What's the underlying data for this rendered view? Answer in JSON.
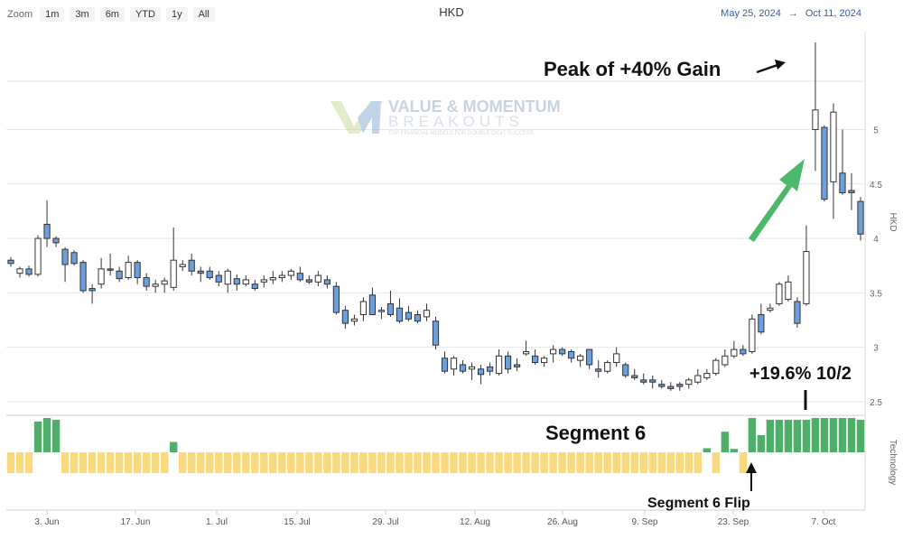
{
  "toolbar": {
    "zoom_label": "Zoom",
    "buttons": [
      "1m",
      "3m",
      "6m",
      "YTD",
      "1y",
      "All"
    ]
  },
  "title": "HKD",
  "range": {
    "from": "May 25, 2024",
    "arrow": "→",
    "to": "Oct 11, 2024"
  },
  "watermark": {
    "line1": "VALUE & MOMENTUM",
    "line2": "BREAKOUTS",
    "line3": "TOP FINANCIAL MODELS FOR DOUBLE DIGIT SUCCESS"
  },
  "annotations": {
    "peak": "Peak of +40% Gain",
    "gain": "+19.6% 10/2",
    "segment": "Segment 6",
    "flip": "Segment 6 Flip"
  },
  "colors": {
    "up_fill": "#ffffff",
    "down_fill": "#6f9fd8",
    "candle_stroke": "#333333",
    "tech_green": "#4fae6a",
    "tech_yellow": "#f9d97e",
    "arrow_green": "#4cb86a"
  },
  "chart_data": {
    "type": "candlestick",
    "title": "HKD",
    "ylabel": "HKD",
    "ylim": [
      2.4,
      5.9
    ],
    "yticks": [
      2.5,
      3,
      3.5,
      4,
      4.5,
      5
    ],
    "x_tick_labels": [
      "3. Jun",
      "17. Jun",
      "1. Jul",
      "15. Jul",
      "29. Jul",
      "12. Aug",
      "26. Aug",
      "9. Sep",
      "23. Sep",
      "7. Oct"
    ],
    "candles": [
      [
        3.8,
        3.83,
        3.74,
        3.77
      ],
      [
        3.68,
        3.74,
        3.64,
        3.72
      ],
      [
        3.72,
        3.75,
        3.65,
        3.67
      ],
      [
        3.67,
        4.03,
        3.65,
        4.0
      ],
      [
        4.13,
        4.35,
        3.92,
        4.0
      ],
      [
        4.0,
        4.02,
        3.92,
        3.96
      ],
      [
        3.9,
        3.92,
        3.6,
        3.76
      ],
      [
        3.87,
        3.89,
        3.75,
        3.77
      ],
      [
        3.78,
        3.8,
        3.5,
        3.52
      ],
      [
        3.54,
        3.58,
        3.4,
        3.52
      ],
      [
        3.58,
        3.82,
        3.54,
        3.72
      ],
      [
        3.72,
        3.86,
        3.66,
        3.71
      ],
      [
        3.7,
        3.74,
        3.6,
        3.63
      ],
      [
        3.64,
        3.84,
        3.62,
        3.78
      ],
      [
        3.78,
        3.8,
        3.58,
        3.64
      ],
      [
        3.64,
        3.68,
        3.52,
        3.56
      ],
      [
        3.56,
        3.62,
        3.5,
        3.58
      ],
      [
        3.58,
        3.64,
        3.5,
        3.61
      ],
      [
        3.55,
        4.1,
        3.52,
        3.8
      ],
      [
        3.74,
        3.8,
        3.7,
        3.76
      ],
      [
        3.8,
        3.86,
        3.66,
        3.7
      ],
      [
        3.7,
        3.74,
        3.6,
        3.68
      ],
      [
        3.7,
        3.74,
        3.62,
        3.64
      ],
      [
        3.66,
        3.7,
        3.56,
        3.6
      ],
      [
        3.58,
        3.72,
        3.5,
        3.7
      ],
      [
        3.63,
        3.67,
        3.52,
        3.58
      ],
      [
        3.58,
        3.66,
        3.56,
        3.62
      ],
      [
        3.58,
        3.62,
        3.52,
        3.54
      ],
      [
        3.6,
        3.66,
        3.55,
        3.62
      ],
      [
        3.62,
        3.7,
        3.58,
        3.64
      ],
      [
        3.64,
        3.7,
        3.6,
        3.66
      ],
      [
        3.66,
        3.72,
        3.62,
        3.7
      ],
      [
        3.68,
        3.74,
        3.6,
        3.62
      ],
      [
        3.62,
        3.66,
        3.58,
        3.6
      ],
      [
        3.6,
        3.7,
        3.56,
        3.66
      ],
      [
        3.62,
        3.66,
        3.54,
        3.58
      ],
      [
        3.56,
        3.6,
        3.3,
        3.32
      ],
      [
        3.34,
        3.38,
        3.17,
        3.22
      ],
      [
        3.24,
        3.3,
        3.2,
        3.26
      ],
      [
        3.3,
        3.46,
        3.24,
        3.42
      ],
      [
        3.48,
        3.55,
        3.3,
        3.3
      ],
      [
        3.33,
        3.37,
        3.26,
        3.34
      ],
      [
        3.4,
        3.52,
        3.28,
        3.3
      ],
      [
        3.36,
        3.45,
        3.22,
        3.24
      ],
      [
        3.32,
        3.38,
        3.24,
        3.26
      ],
      [
        3.3,
        3.34,
        3.22,
        3.24
      ],
      [
        3.28,
        3.4,
        3.24,
        3.34
      ],
      [
        3.24,
        3.28,
        2.98,
        3.02
      ],
      [
        2.9,
        2.96,
        2.76,
        2.78
      ],
      [
        2.8,
        2.92,
        2.74,
        2.9
      ],
      [
        2.84,
        2.88,
        2.76,
        2.78
      ],
      [
        2.8,
        2.86,
        2.7,
        2.82
      ],
      [
        2.8,
        2.84,
        2.66,
        2.75
      ],
      [
        2.82,
        2.86,
        2.74,
        2.78
      ],
      [
        2.76,
        2.98,
        2.74,
        2.92
      ],
      [
        2.92,
        2.96,
        2.76,
        2.8
      ],
      [
        2.84,
        2.9,
        2.78,
        2.82
      ],
      [
        2.94,
        3.06,
        2.92,
        2.96
      ],
      [
        2.92,
        2.98,
        2.84,
        2.86
      ],
      [
        2.86,
        2.92,
        2.82,
        2.9
      ],
      [
        2.94,
        3.02,
        2.86,
        2.98
      ],
      [
        2.98,
        3.0,
        2.92,
        2.94
      ],
      [
        2.96,
        2.98,
        2.86,
        2.9
      ],
      [
        2.88,
        2.94,
        2.82,
        2.92
      ],
      [
        2.98,
        2.98,
        2.8,
        2.84
      ],
      [
        2.8,
        2.88,
        2.72,
        2.78
      ],
      [
        2.78,
        2.88,
        2.76,
        2.86
      ],
      [
        2.86,
        3.0,
        2.82,
        2.94
      ],
      [
        2.84,
        2.86,
        2.72,
        2.74
      ],
      [
        2.74,
        2.8,
        2.7,
        2.72
      ],
      [
        2.7,
        2.76,
        2.66,
        2.68
      ],
      [
        2.7,
        2.74,
        2.62,
        2.68
      ],
      [
        2.66,
        2.7,
        2.62,
        2.64
      ],
      [
        2.64,
        2.68,
        2.6,
        2.62
      ],
      [
        2.66,
        2.68,
        2.6,
        2.64
      ],
      [
        2.66,
        2.72,
        2.62,
        2.7
      ],
      [
        2.68,
        2.8,
        2.66,
        2.74
      ],
      [
        2.72,
        2.8,
        2.7,
        2.76
      ],
      [
        2.76,
        2.9,
        2.74,
        2.88
      ],
      [
        2.84,
        2.98,
        2.82,
        2.92
      ],
      [
        2.92,
        3.06,
        2.9,
        2.98
      ],
      [
        2.98,
        3.02,
        2.92,
        2.94
      ],
      [
        2.96,
        3.3,
        2.94,
        3.26
      ],
      [
        3.3,
        3.4,
        3.12,
        3.14
      ],
      [
        3.34,
        3.4,
        3.32,
        3.36
      ],
      [
        3.4,
        3.6,
        3.38,
        3.58
      ],
      [
        3.44,
        3.66,
        3.42,
        3.6
      ],
      [
        3.42,
        3.46,
        3.18,
        3.22
      ],
      [
        3.4,
        4.12,
        3.38,
        3.88
      ],
      [
        5.0,
        5.8,
        4.62,
        5.18
      ],
      [
        5.02,
        5.04,
        4.34,
        4.36
      ],
      [
        4.52,
        5.24,
        4.18,
        5.16
      ],
      [
        4.6,
        5.0,
        4.4,
        4.42
      ],
      [
        4.44,
        4.6,
        4.26,
        4.42
      ],
      [
        4.34,
        4.38,
        3.98,
        4.04
      ]
    ],
    "indicator": {
      "name": "Technology",
      "series": [
        [
          0.0,
          0.25,
          0.4
        ],
        [
          0.0,
          0.25,
          0.4
        ],
        [
          0.0,
          0.25,
          0.4
        ],
        [
          1.0,
          1.0,
          1.0
        ],
        [
          1.0,
          1.0,
          1.0
        ],
        [
          1.0,
          1.0,
          1.0
        ],
        [
          0.0,
          0.25,
          0.4
        ],
        [
          0.0,
          0.25,
          0.4
        ],
        [
          0.0,
          0.25,
          0.4
        ],
        [
          0.0,
          0.25,
          0.4
        ],
        [
          0.0,
          0.25,
          0.4
        ],
        [
          0.0,
          0.25,
          0.4
        ],
        [
          0.0,
          0.25,
          0.4
        ],
        [
          0.0,
          0.25,
          0.4
        ],
        [
          0.0,
          0.25,
          0.4
        ],
        [
          0.0,
          0.25,
          0.4
        ],
        [
          0.0,
          0.25,
          0.4
        ],
        [
          0.0,
          0.25,
          0.4
        ],
        [
          0.0,
          0.25,
          0.4
        ],
        [
          0.0,
          0.25,
          0.4
        ],
        [
          0.0,
          0.25,
          0.4
        ],
        [
          0.0,
          0.25,
          0.4
        ],
        [
          0.0,
          0.25,
          0.4
        ],
        [
          0.0,
          0.25,
          0.4
        ],
        [
          0.0,
          0.25,
          0.4
        ],
        [
          0.0,
          0.25,
          0.4
        ],
        [
          0.0,
          0.25,
          0.4
        ],
        [
          0.0,
          0.25,
          0.4
        ],
        [
          0.0,
          0.25,
          0.4
        ],
        [
          0.0,
          0.25,
          0.4
        ]
      ],
      "green_values": [
        0,
        0,
        0,
        0.9,
        1.0,
        0.95,
        0,
        0,
        0,
        0,
        0,
        0,
        0,
        0,
        0,
        0,
        0,
        0,
        0.3,
        0,
        0,
        0,
        0,
        0,
        0,
        0,
        0,
        0,
        0,
        0,
        0,
        0,
        0,
        0,
        0,
        0,
        0,
        0,
        0,
        0,
        0,
        0,
        0,
        0,
        0,
        0,
        0,
        0,
        0,
        0,
        0,
        0,
        0,
        0,
        0,
        0,
        0,
        0,
        0,
        0,
        0,
        0,
        0,
        0,
        0,
        0,
        0,
        0,
        0,
        0,
        0,
        0,
        0,
        0,
        0,
        0,
        0,
        0.12,
        0,
        0.6,
        0.1,
        0,
        1.0,
        0.5,
        0.95,
        0.95,
        0.95,
        0.95,
        0.95,
        1.0,
        1.0,
        1.0,
        1.0,
        1.0,
        0.95,
        0.95,
        0.75
      ],
      "yellow_values": [
        1,
        1,
        1,
        0,
        0,
        0,
        1,
        1,
        1,
        1,
        1,
        1,
        1,
        1,
        1,
        1,
        1,
        1,
        0,
        1,
        1,
        1,
        1,
        1,
        1,
        1,
        1,
        1,
        1,
        1,
        1,
        1,
        1,
        1,
        1,
        1,
        1,
        1,
        1,
        1,
        1,
        1,
        1,
        1,
        1,
        1,
        1,
        1,
        1,
        1,
        1,
        1,
        1,
        1,
        1,
        1,
        1,
        1,
        1,
        1,
        1,
        1,
        1,
        1,
        1,
        1,
        1,
        1,
        1,
        1,
        1,
        1,
        1,
        1,
        1,
        1,
        1,
        0,
        1,
        0,
        0,
        1,
        0,
        0,
        0,
        0,
        0,
        0,
        0,
        0,
        0,
        0,
        0,
        0,
        0,
        0,
        0
      ]
    }
  }
}
